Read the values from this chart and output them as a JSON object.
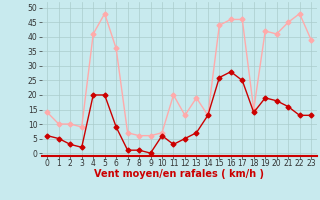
{
  "hours": [
    0,
    1,
    2,
    3,
    4,
    5,
    6,
    7,
    8,
    9,
    10,
    11,
    12,
    13,
    14,
    15,
    16,
    17,
    18,
    19,
    20,
    21,
    22,
    23
  ],
  "vent_moyen": [
    6,
    5,
    3,
    2,
    20,
    20,
    9,
    1,
    1,
    0,
    6,
    3,
    5,
    7,
    13,
    26,
    28,
    25,
    14,
    19,
    18,
    16,
    13,
    13
  ],
  "vent_rafales": [
    14,
    10,
    10,
    9,
    41,
    48,
    36,
    7,
    6,
    6,
    7,
    20,
    13,
    19,
    13,
    44,
    46,
    46,
    15,
    42,
    41,
    45,
    48,
    39
  ],
  "color_moyen": "#cc0000",
  "color_rafales": "#ffaaaa",
  "bg_color": "#c8eaee",
  "grid_color": "#aacccc",
  "xlabel": "Vent moyen/en rafales ( km/h )",
  "xlabel_color": "#cc0000",
  "yticks": [
    0,
    5,
    10,
    15,
    20,
    25,
    30,
    35,
    40,
    45,
    50
  ],
  "ylim": [
    -1,
    52
  ],
  "xlim": [
    -0.5,
    23.5
  ],
  "marker": "D",
  "marker_size": 2.5,
  "line_width": 1.0
}
